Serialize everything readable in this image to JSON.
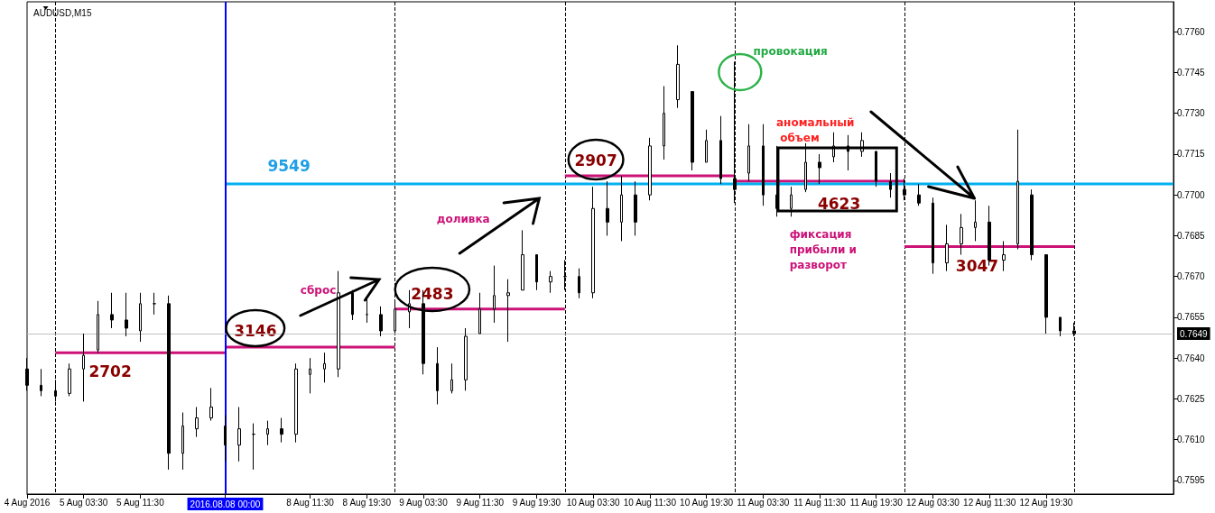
{
  "chart_data": {
    "type": "candlestick",
    "title": "AUDUSD,M15",
    "categories": [
      "4 Aug 2016",
      null,
      null,
      null,
      "5 Aug 03:30",
      null,
      null,
      null,
      "5 Aug 11:30",
      null,
      null,
      null,
      null,
      null,
      "2016.08.08 00:00",
      null,
      null,
      null,
      null,
      null,
      "8 Aug 11:30",
      null,
      null,
      null,
      "8 Aug 19:30",
      null,
      null,
      null,
      "9 Aug 03:30",
      null,
      null,
      null,
      "9 Aug 11:30",
      null,
      null,
      null,
      "9 Aug 19:30",
      null,
      null,
      null,
      "10 Aug 03:30",
      null,
      null,
      null,
      "10 Aug 11:30",
      null,
      null,
      null,
      "10 Aug 19:30",
      null,
      null,
      null,
      "11 Aug 03:30",
      null,
      null,
      null,
      "11 Aug 11:30",
      null,
      null,
      null,
      "11 Aug 19:30",
      null,
      null,
      null,
      "12 Aug 03:30",
      null,
      null,
      null,
      "12 Aug 11:30",
      null,
      null,
      null,
      "12 Aug 19:30",
      null,
      null,
      null,
      null,
      null,
      null,
      null,
      null,
      null
    ],
    "ohlc": [
      [
        0.7636,
        0.764,
        0.7628,
        0.763
      ],
      [
        0.763,
        0.7636,
        0.7626,
        0.7628
      ],
      [
        0.7628,
        0.7632,
        0.7624,
        0.7626
      ],
      [
        0.7627,
        0.7638,
        0.7626,
        0.7636
      ],
      [
        0.7636,
        0.7649,
        0.7624,
        0.7641
      ],
      [
        0.7643,
        0.7661,
        0.7642,
        0.7656
      ],
      [
        0.7656,
        0.7664,
        0.7651,
        0.7654
      ],
      [
        0.7654,
        0.7664,
        0.7648,
        0.7651
      ],
      [
        0.765,
        0.7664,
        0.7646,
        0.766
      ],
      [
        0.766,
        0.7664,
        0.7656,
        0.766
      ],
      [
        0.766,
        0.7663,
        0.7599,
        0.7605
      ],
      [
        0.7605,
        0.762,
        0.7599,
        0.7615
      ],
      [
        0.7614,
        0.7622,
        0.7611,
        0.7618
      ],
      [
        0.7618,
        0.7629,
        0.7617,
        0.7622
      ],
      [
        0.7615,
        0.7619,
        0.7602,
        0.7608
      ],
      [
        0.7608,
        0.7622,
        0.7602,
        0.7614
      ],
      [
        0.7612,
        0.7616,
        0.7599,
        0.7612
      ],
      [
        0.7612,
        0.7617,
        0.7608,
        0.7614
      ],
      [
        0.7614,
        0.7618,
        0.7609,
        0.7612
      ],
      [
        0.7612,
        0.7638,
        0.7609,
        0.7636
      ],
      [
        0.7634,
        0.764,
        0.7627,
        0.7636
      ],
      [
        0.7636,
        0.7642,
        0.7631,
        0.7638
      ],
      [
        0.7636,
        0.7672,
        0.7633,
        0.7664
      ],
      [
        0.7664,
        0.7665,
        0.7654,
        0.7656
      ],
      [
        0.7656,
        0.7662,
        0.7653,
        0.7656
      ],
      [
        0.7656,
        0.7659,
        0.7648,
        0.765
      ],
      [
        0.765,
        0.7661,
        0.7649,
        0.7658
      ],
      [
        0.7657,
        0.7665,
        0.7651,
        0.766
      ],
      [
        0.766,
        0.7665,
        0.7634,
        0.7638
      ],
      [
        0.7638,
        0.7644,
        0.7623,
        0.7628
      ],
      [
        0.7628,
        0.7638,
        0.7627,
        0.7632
      ],
      [
        0.7632,
        0.7651,
        0.7628,
        0.7648
      ],
      [
        0.7649,
        0.7664,
        0.7649,
        0.7658
      ],
      [
        0.7658,
        0.7674,
        0.7653,
        0.7663
      ],
      [
        0.7663,
        0.7669,
        0.7646,
        0.7664
      ],
      [
        0.7665,
        0.7687,
        0.7665,
        0.7678
      ],
      [
        0.7678,
        0.7678,
        0.7665,
        0.7668
      ],
      [
        0.7668,
        0.7672,
        0.7664,
        0.767
      ],
      [
        0.767,
        0.7676,
        0.7665,
        0.767
      ],
      [
        0.767,
        0.7673,
        0.7662,
        0.7664
      ],
      [
        0.7664,
        0.7703,
        0.7662,
        0.7695
      ],
      [
        0.7695,
        0.7705,
        0.7685,
        0.769
      ],
      [
        0.769,
        0.7707,
        0.7683,
        0.77
      ],
      [
        0.77,
        0.7705,
        0.7685,
        0.769
      ],
      [
        0.77,
        0.7721,
        0.7698,
        0.7718
      ],
      [
        0.7718,
        0.774,
        0.7713,
        0.773
      ],
      [
        0.7735,
        0.7755,
        0.7732,
        0.7748
      ],
      [
        0.7738,
        0.7738,
        0.7709,
        0.7712
      ],
      [
        0.7712,
        0.7724,
        0.7712,
        0.772
      ],
      [
        0.772,
        0.7729,
        0.7704,
        0.7706
      ],
      [
        0.7706,
        0.7749,
        0.7697,
        0.7702
      ],
      [
        0.7708,
        0.7726,
        0.7705,
        0.7718
      ],
      [
        0.7718,
        0.7726,
        0.7696,
        0.77
      ],
      [
        0.77,
        0.7718,
        0.7692,
        0.7695
      ],
      [
        0.7695,
        0.7703,
        0.7692,
        0.77
      ],
      [
        0.7702,
        0.7719,
        0.7701,
        0.7712
      ],
      [
        0.7712,
        0.7715,
        0.7704,
        0.771
      ],
      [
        0.7714,
        0.7723,
        0.7712,
        0.7718
      ],
      [
        0.7718,
        0.7722,
        0.7709,
        0.7716
      ],
      [
        0.7716,
        0.7723,
        0.7714,
        0.772
      ],
      [
        0.7716,
        0.7716,
        0.7703,
        0.7705
      ],
      [
        0.7705,
        0.7708,
        0.7699,
        0.7702
      ],
      [
        0.7702,
        0.7706,
        0.7698,
        0.77
      ],
      [
        0.77,
        0.7704,
        0.7696,
        0.7697
      ],
      [
        0.7697,
        0.7699,
        0.7671,
        0.7675
      ],
      [
        0.7675,
        0.7689,
        0.7672,
        0.7682
      ],
      [
        0.7682,
        0.7693,
        0.7678,
        0.7688
      ],
      [
        0.7688,
        0.7698,
        0.7683,
        0.769
      ],
      [
        0.769,
        0.7696,
        0.7674,
        0.7676
      ],
      [
        0.7676,
        0.7683,
        0.7672,
        0.7678
      ],
      [
        0.7682,
        0.7724,
        0.768,
        0.7705
      ],
      [
        0.77,
        0.7702,
        0.7676,
        0.7678
      ],
      [
        0.7678,
        0.7678,
        0.7649,
        0.7655
      ],
      [
        0.7655,
        0.7655,
        0.7648,
        0.765
      ],
      [
        0.765,
        0.7653,
        0.7648,
        0.7649
      ],
      null,
      null,
      null,
      null,
      null,
      null,
      null
    ],
    "series": [
      {
        "type": "line",
        "color": "#cc1177",
        "values": [
          null,
          null,
          0.7642,
          0.7642,
          0.7642,
          0.7642,
          0.7642,
          0.7642,
          0.7642,
          0.7642,
          0.7642,
          0.7642,
          0.7642,
          0.7642,
          0.7642,
          null,
          null,
          null,
          null,
          null,
          null,
          null,
          null,
          null,
          null,
          null,
          null,
          null,
          null,
          null,
          null,
          null,
          null,
          null,
          null,
          null,
          null,
          null,
          null,
          null,
          null,
          null,
          null,
          null,
          null,
          null,
          null,
          null,
          null,
          null,
          null,
          null,
          null,
          null,
          null,
          null,
          null,
          null,
          null,
          null,
          null,
          null,
          null,
          null,
          null,
          null,
          null,
          null,
          null,
          null,
          null,
          null,
          null,
          null,
          null,
          null,
          null,
          null,
          null,
          null,
          null,
          null
        ]
      },
      {
        "type": "line",
        "color": "#cc1177",
        "values": [
          null,
          null,
          null,
          null,
          null,
          null,
          null,
          null,
          null,
          null,
          null,
          null,
          null,
          null,
          0.7644,
          0.7644,
          0.7644,
          0.7644,
          0.7644,
          0.7644,
          0.7644,
          0.7644,
          0.7644,
          0.7644,
          0.7644,
          0.7644,
          0.7644,
          null,
          null,
          null,
          null,
          null,
          null,
          null,
          null,
          null,
          null,
          null,
          null,
          null,
          null,
          null,
          null,
          null,
          null,
          null,
          null,
          null,
          null,
          null,
          null,
          null,
          null,
          null,
          null,
          null,
          null,
          null,
          null,
          null,
          null,
          null,
          null,
          null,
          null,
          null,
          null,
          null,
          null,
          null,
          null,
          null,
          null,
          null,
          null,
          null,
          null,
          null,
          null,
          null,
          null,
          null
        ]
      },
      {
        "type": "line",
        "color": "#cc1177",
        "values": [
          null,
          null,
          null,
          null,
          null,
          null,
          null,
          null,
          null,
          null,
          null,
          null,
          null,
          null,
          null,
          null,
          null,
          null,
          null,
          null,
          null,
          null,
          null,
          null,
          null,
          null,
          0.7658,
          0.7658,
          0.7658,
          0.7658,
          0.7658,
          0.7658,
          0.7658,
          0.7658,
          0.7658,
          0.7658,
          0.7658,
          0.7658,
          0.7658,
          null,
          null,
          null,
          null,
          null,
          null,
          null,
          null,
          null,
          null,
          null,
          null,
          null,
          null,
          null,
          null,
          null,
          null,
          null,
          null,
          null,
          null,
          null,
          null,
          null,
          null,
          null,
          null,
          null,
          null,
          null,
          null,
          null,
          null,
          null,
          null,
          null,
          null,
          null,
          null,
          null,
          null,
          null
        ]
      },
      {
        "type": "line",
        "color": "#cc1177",
        "values": [
          null,
          null,
          null,
          null,
          null,
          null,
          null,
          null,
          null,
          null,
          null,
          null,
          null,
          null,
          null,
          null,
          null,
          null,
          null,
          null,
          null,
          null,
          null,
          null,
          null,
          null,
          null,
          null,
          null,
          null,
          null,
          null,
          null,
          null,
          null,
          null,
          null,
          null,
          0.7707,
          0.7707,
          0.7707,
          0.7707,
          0.7707,
          0.7707,
          0.7707,
          0.7707,
          0.7707,
          0.7707,
          0.7707,
          0.7707,
          0.7707,
          null,
          null,
          null,
          null,
          null,
          null,
          null,
          null,
          null,
          null,
          null,
          null,
          null,
          null,
          null,
          null,
          null,
          null,
          null,
          null,
          null,
          null,
          null,
          null,
          null,
          null,
          null,
          null,
          null,
          null,
          null
        ]
      },
      {
        "type": "line",
        "color": "#cc1177",
        "values": [
          null,
          null,
          null,
          null,
          null,
          null,
          null,
          null,
          null,
          null,
          null,
          null,
          null,
          null,
          null,
          null,
          null,
          null,
          null,
          null,
          null,
          null,
          null,
          null,
          null,
          null,
          null,
          null,
          null,
          null,
          null,
          null,
          null,
          null,
          null,
          null,
          null,
          null,
          null,
          null,
          null,
          null,
          null,
          null,
          null,
          null,
          null,
          null,
          null,
          null,
          0.7705,
          0.7705,
          0.7705,
          0.7705,
          0.7705,
          0.7705,
          0.7705,
          0.7705,
          0.7705,
          0.7705,
          0.7705,
          0.7705,
          0.7705,
          null,
          null,
          null,
          null,
          null,
          null,
          null,
          null,
          null,
          null,
          null,
          null,
          null,
          null,
          null,
          null,
          null,
          null,
          null
        ]
      },
      {
        "type": "line",
        "color": "#cc1177",
        "values": [
          null,
          null,
          null,
          null,
          null,
          null,
          null,
          null,
          null,
          null,
          null,
          null,
          null,
          null,
          null,
          null,
          null,
          null,
          null,
          null,
          null,
          null,
          null,
          null,
          null,
          null,
          null,
          null,
          null,
          null,
          null,
          null,
          null,
          null,
          null,
          null,
          null,
          null,
          null,
          null,
          null,
          null,
          null,
          null,
          null,
          null,
          null,
          null,
          null,
          null,
          null,
          null,
          null,
          null,
          null,
          null,
          null,
          null,
          null,
          null,
          null,
          null,
          0.7681,
          0.7681,
          0.7681,
          0.7681,
          0.7681,
          0.7681,
          0.7681,
          0.7681,
          0.7681,
          0.7681,
          0.7681,
          0.7681,
          0.7681,
          null,
          null,
          null,
          null,
          null,
          null,
          null
        ]
      },
      {
        "type": "line",
        "color": "#00b0f0",
        "values": [
          null,
          null,
          null,
          null,
          null,
          null,
          null,
          null,
          null,
          null,
          null,
          null,
          null,
          null,
          0.7704,
          0.7704,
          0.7704,
          0.7704,
          0.7704,
          0.7704,
          0.7704,
          0.7704,
          0.7704,
          0.7704,
          0.7704,
          0.7704,
          0.7704,
          0.7704,
          0.7704,
          0.7704,
          0.7704,
          0.7704,
          0.7704,
          0.7704,
          0.7704,
          0.7704,
          0.7704,
          0.7704,
          0.7704,
          0.7704,
          0.7704,
          0.7704,
          0.7704,
          0.7704,
          0.7704,
          0.7704,
          0.7704,
          0.7704,
          0.7704,
          0.7704,
          0.7704,
          0.7704,
          0.7704,
          0.7704,
          0.7704,
          0.7704,
          0.7704,
          0.7704,
          0.7704,
          0.7704,
          0.7704,
          0.7704,
          0.7704,
          0.7704,
          0.7704,
          0.7704,
          0.7704,
          0.7704,
          0.7704,
          0.7704,
          0.7704,
          0.7704,
          0.7704,
          0.7704,
          0.7704,
          0.7704,
          0.7704,
          0.7704,
          0.7704,
          0.7704,
          0.7704,
          0.7704
        ]
      }
    ],
    "ylim": [
      0.759,
      0.7771
    ],
    "grid": "x",
    "yticks": [
      {
        "value": 0.776,
        "label": "0.7760"
      },
      {
        "value": 0.7745,
        "label": "0.7745"
      },
      {
        "value": 0.773,
        "label": "0.7730"
      },
      {
        "value": 0.7715,
        "label": "0.7715"
      },
      {
        "value": 0.77,
        "label": "0.7700"
      },
      {
        "value": 0.7685,
        "label": "0.7685"
      },
      {
        "value": 0.767,
        "label": "0.7670"
      },
      {
        "value": 0.7655,
        "label": "0.7655"
      },
      {
        "value": 0.764,
        "label": "0.7640"
      },
      {
        "value": 0.7625,
        "label": "0.7625"
      },
      {
        "value": 0.761,
        "label": "0.7610"
      },
      {
        "value": 0.7595,
        "label": "0.7595"
      }
    ],
    "ref_lines": [
      {
        "axis": "x",
        "value": "2016.08.08 00:00",
        "color": "#0000ff"
      },
      {
        "axis": "y",
        "value": 0.7649,
        "label": "0.7649",
        "color": "#c0c0c0"
      }
    ],
    "annotations": [
      "провокация",
      "аномальный объем",
      "фиксация прибыли и разворот",
      "доливка",
      "сброс",
      {
        "text": "2702",
        "y": 0.7642
      },
      {
        "text": "3146",
        "y": 0.7644
      },
      {
        "text": "2483",
        "y": 0.7658
      },
      {
        "text": "2907",
        "y": 0.7707
      },
      {
        "text": "4623",
        "y": 0.7705
      },
      {
        "text": "3047",
        "y": 0.7681
      },
      {
        "text": "9549",
        "y": 0.7704
      }
    ]
  }
}
